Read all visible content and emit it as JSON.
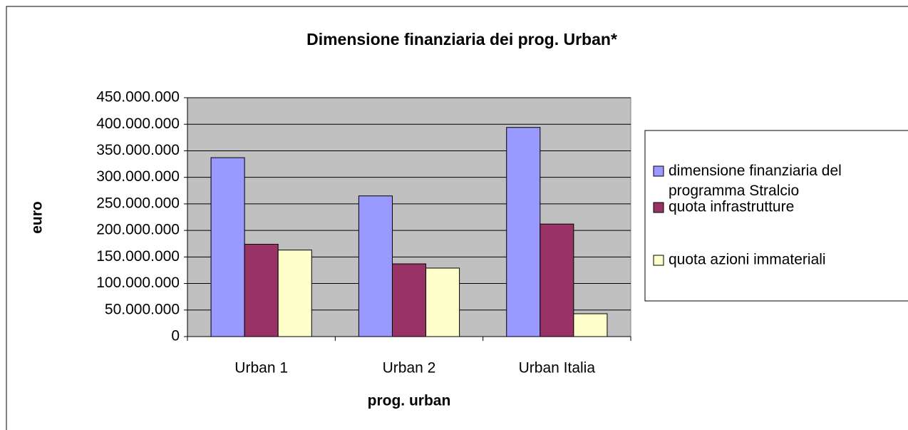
{
  "chart_data": {
    "type": "bar",
    "title": "Dimensione finanziaria dei prog. Urban*",
    "x_label": "prog. urban",
    "y_label": "euro",
    "categories": [
      "Urban 1",
      "Urban 2",
      "Urban Italia"
    ],
    "series": [
      {
        "name": "dimensione finanziaria del programma Stralcio",
        "color": "#9999ff",
        "values": [
          337000000,
          265000000,
          394000000
        ]
      },
      {
        "name": "quota infrastrutture",
        "color": "#993366",
        "values": [
          174000000,
          137000000,
          212000000
        ]
      },
      {
        "name": "quota azioni immateriali",
        "color": "#ffffcc",
        "values": [
          163000000,
          129000000,
          43000000
        ]
      }
    ],
    "ylim": [
      0,
      450000000
    ],
    "yticks": [
      0,
      {
        "value": 50000000,
        "label": "50.000.000"
      },
      {
        "value": 100000000,
        "label": "100.000.000"
      },
      {
        "value": 150000000,
        "label": "150.000.000"
      },
      {
        "value": 200000000,
        "label": "200.000.000"
      },
      {
        "value": 250000000,
        "label": "250.000.000"
      },
      {
        "value": 300000000,
        "label": "300.000.000"
      },
      {
        "value": 350000000,
        "label": "350.000.000"
      },
      {
        "value": 400000000,
        "label": "400.000.000"
      },
      {
        "value": 450000000,
        "label": "450.000.000"
      }
    ],
    "grid": true,
    "legend": "right"
  }
}
